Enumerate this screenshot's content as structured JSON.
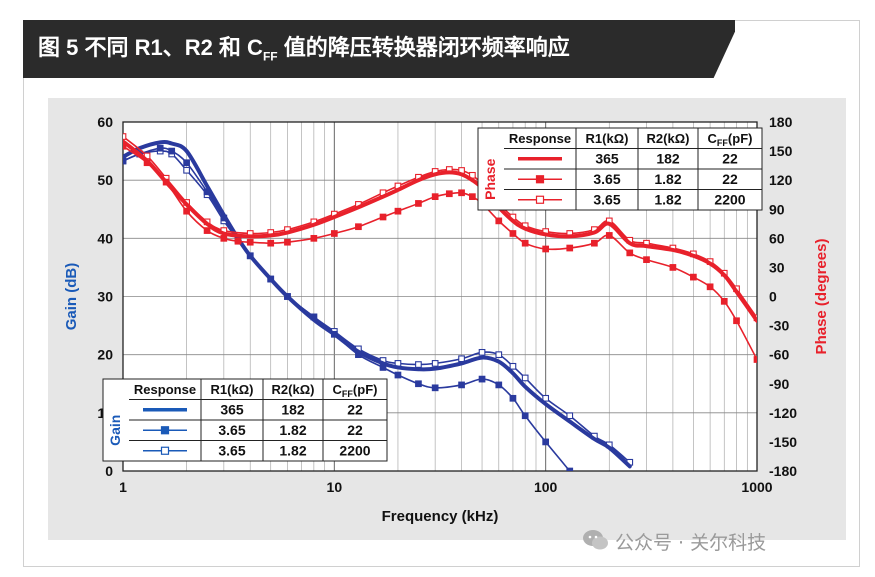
{
  "title": "图 5 不同 R1、R2 和 C",
  "title_sub": "FF",
  "title_tail": " 值的降压转换器闭环频率响应",
  "watermark": "公众号 · 关尔科技",
  "colors": {
    "gain": "#2a3a9e",
    "phase": "#e8212b",
    "grid": "#999999"
  },
  "chart_data": {
    "type": "line",
    "xlabel": "Frequency (kHz)",
    "ylabel_left": "Gain (dB)",
    "ylabel_right": "Phase (degrees)",
    "x_scale": "log",
    "xlim": [
      1,
      1000
    ],
    "ylim_left": [
      0,
      60
    ],
    "ylim_right": [
      -180,
      180
    ],
    "grid": true,
    "x_ticks": [
      {
        "v": 1,
        "label": "1"
      },
      {
        "v": 10,
        "label": "10"
      },
      {
        "v": 100,
        "label": "100"
      },
      {
        "v": 1000,
        "label": "1000"
      }
    ],
    "y_ticks_left": [
      {
        "v": 0,
        "label": "0"
      },
      {
        "v": 10,
        "label": "10"
      },
      {
        "v": 20,
        "label": "20"
      },
      {
        "v": 30,
        "label": "30"
      },
      {
        "v": 40,
        "label": "40"
      },
      {
        "v": 50,
        "label": "50"
      },
      {
        "v": 60,
        "label": "60"
      }
    ],
    "y_ticks_right": [
      {
        "v": 180,
        "label": "180"
      },
      {
        "v": 150,
        "label": "150"
      },
      {
        "v": 120,
        "label": "120"
      },
      {
        "v": 90,
        "label": "90"
      },
      {
        "v": 60,
        "label": "60"
      },
      {
        "v": 30,
        "label": "30"
      },
      {
        "v": 0,
        "label": "0"
      },
      {
        "v": -30,
        "label": "-30"
      },
      {
        "v": -60,
        "label": "-60"
      },
      {
        "v": -90,
        "label": "-90"
      },
      {
        "v": -120,
        "label": "-120"
      },
      {
        "v": -150,
        "label": "-150"
      },
      {
        "v": -180,
        "label": "-180"
      }
    ],
    "series": [
      {
        "group": "gain",
        "style": "solid",
        "axis": "left",
        "points": [
          [
            1,
            54
          ],
          [
            1.2,
            55.5
          ],
          [
            1.5,
            56.5
          ],
          [
            1.7,
            56.3
          ],
          [
            2,
            55
          ],
          [
            2.5,
            49
          ],
          [
            3,
            44
          ],
          [
            3.5,
            40
          ],
          [
            4,
            37
          ],
          [
            5,
            33
          ],
          [
            6,
            30
          ],
          [
            8,
            26
          ],
          [
            10,
            23.5
          ],
          [
            13,
            20.5
          ],
          [
            17,
            18.5
          ],
          [
            20,
            17.8
          ],
          [
            25,
            17.5
          ],
          [
            30,
            17.6
          ],
          [
            40,
            18.5
          ],
          [
            50,
            19.5
          ],
          [
            60,
            18.8
          ],
          [
            70,
            16.8
          ],
          [
            80,
            14.5
          ],
          [
            100,
            11.5
          ],
          [
            130,
            8.5
          ],
          [
            170,
            5.5
          ],
          [
            200,
            4
          ],
          [
            250,
            0.8
          ]
        ]
      },
      {
        "group": "gain",
        "style": "filled",
        "axis": "left",
        "points": [
          [
            1,
            53.3
          ],
          [
            1.2,
            54.5
          ],
          [
            1.5,
            55.5
          ],
          [
            1.7,
            55
          ],
          [
            2,
            53
          ],
          [
            2.5,
            48
          ],
          [
            3,
            43.5
          ],
          [
            3.5,
            40
          ],
          [
            4,
            37
          ],
          [
            5,
            33
          ],
          [
            6,
            30
          ],
          [
            8,
            26.5
          ],
          [
            10,
            23.5
          ],
          [
            13,
            20
          ],
          [
            17,
            17.8
          ],
          [
            20,
            16.5
          ],
          [
            25,
            15
          ],
          [
            30,
            14.3
          ],
          [
            40,
            14.8
          ],
          [
            50,
            15.8
          ],
          [
            60,
            14.8
          ],
          [
            70,
            12.5
          ],
          [
            80,
            9.5
          ],
          [
            100,
            5
          ],
          [
            130,
            0
          ]
        ]
      },
      {
        "group": "gain",
        "style": "open",
        "axis": "left",
        "points": [
          [
            1,
            53.3
          ],
          [
            1.2,
            54.5
          ],
          [
            1.5,
            55
          ],
          [
            1.7,
            54.5
          ],
          [
            2,
            51.7
          ],
          [
            2.5,
            47.5
          ],
          [
            3,
            43
          ],
          [
            3.5,
            39.7
          ],
          [
            4,
            37
          ],
          [
            5,
            33
          ],
          [
            6,
            30
          ],
          [
            8,
            26.5
          ],
          [
            10,
            24
          ],
          [
            13,
            21
          ],
          [
            17,
            19
          ],
          [
            20,
            18.5
          ],
          [
            25,
            18.3
          ],
          [
            30,
            18.5
          ],
          [
            40,
            19.3
          ],
          [
            50,
            20.4
          ],
          [
            60,
            20
          ],
          [
            70,
            18
          ],
          [
            80,
            16
          ],
          [
            100,
            12.5
          ],
          [
            130,
            9.5
          ],
          [
            170,
            6
          ],
          [
            200,
            4.5
          ],
          [
            250,
            1.5
          ]
        ]
      },
      {
        "group": "phase",
        "style": "solid",
        "axis": "right",
        "points": [
          [
            1,
            160
          ],
          [
            1.3,
            140
          ],
          [
            1.6,
            118
          ],
          [
            2,
            95
          ],
          [
            2.5,
            75
          ],
          [
            3,
            65
          ],
          [
            4,
            62
          ],
          [
            5,
            63
          ],
          [
            6,
            66
          ],
          [
            8,
            74
          ],
          [
            10,
            82
          ],
          [
            13,
            92
          ],
          [
            17,
            103
          ],
          [
            20,
            110
          ],
          [
            25,
            120
          ],
          [
            30,
            126
          ],
          [
            35,
            128
          ],
          [
            40,
            126
          ],
          [
            45,
            120
          ],
          [
            50,
            112
          ],
          [
            60,
            92
          ],
          [
            70,
            78
          ],
          [
            80,
            70
          ],
          [
            100,
            64
          ],
          [
            130,
            62
          ],
          [
            170,
            66
          ],
          [
            200,
            75
          ],
          [
            250,
            55
          ],
          [
            300,
            52
          ],
          [
            400,
            48
          ],
          [
            500,
            42
          ],
          [
            600,
            34
          ],
          [
            700,
            22
          ],
          [
            800,
            5
          ],
          [
            1000,
            -25
          ]
        ]
      },
      {
        "group": "phase",
        "style": "filled",
        "axis": "right",
        "points": [
          [
            1,
            155
          ],
          [
            1.3,
            138
          ],
          [
            1.6,
            118
          ],
          [
            2,
            88
          ],
          [
            2.5,
            68
          ],
          [
            3,
            60
          ],
          [
            3.5,
            57
          ],
          [
            4,
            56
          ],
          [
            5,
            55
          ],
          [
            6,
            56
          ],
          [
            8,
            60
          ],
          [
            10,
            65
          ],
          [
            13,
            72
          ],
          [
            17,
            82
          ],
          [
            20,
            88
          ],
          [
            25,
            96
          ],
          [
            30,
            103
          ],
          [
            35,
            106
          ],
          [
            40,
            107
          ],
          [
            45,
            103
          ],
          [
            50,
            96
          ],
          [
            60,
            78
          ],
          [
            70,
            65
          ],
          [
            80,
            55
          ],
          [
            100,
            49
          ],
          [
            130,
            50
          ],
          [
            170,
            55
          ],
          [
            200,
            63
          ],
          [
            250,
            45
          ],
          [
            300,
            38
          ],
          [
            400,
            30
          ],
          [
            500,
            20
          ],
          [
            600,
            10
          ],
          [
            700,
            -5
          ],
          [
            800,
            -25
          ],
          [
            1000,
            -65
          ]
        ]
      },
      {
        "group": "phase",
        "style": "open",
        "axis": "right",
        "points": [
          [
            1,
            165
          ],
          [
            1.3,
            145
          ],
          [
            1.6,
            122
          ],
          [
            2,
            97
          ],
          [
            2.5,
            77
          ],
          [
            3,
            68
          ],
          [
            4,
            65
          ],
          [
            5,
            66
          ],
          [
            6,
            69
          ],
          [
            8,
            77
          ],
          [
            10,
            85
          ],
          [
            13,
            95
          ],
          [
            17,
            107
          ],
          [
            20,
            114
          ],
          [
            25,
            123
          ],
          [
            30,
            129
          ],
          [
            35,
            131
          ],
          [
            40,
            130
          ],
          [
            45,
            125
          ],
          [
            50,
            116
          ],
          [
            60,
            96
          ],
          [
            70,
            82
          ],
          [
            80,
            73
          ],
          [
            100,
            67
          ],
          [
            130,
            65
          ],
          [
            170,
            69
          ],
          [
            200,
            78
          ],
          [
            250,
            58
          ],
          [
            300,
            55
          ],
          [
            400,
            50
          ],
          [
            500,
            44
          ],
          [
            600,
            36
          ],
          [
            700,
            24
          ],
          [
            800,
            8
          ],
          [
            1000,
            -22
          ]
        ]
      }
    ],
    "legend_phase": {
      "title": "Phase",
      "headers": [
        "Response",
        "R1(kΩ)",
        "R2(kΩ)",
        "C_FF(pF)"
      ],
      "header_parts": [
        {
          "main": "C",
          "sub": "FF",
          "tail": "(pF)"
        }
      ],
      "rows": [
        [
          "365",
          "182",
          "22"
        ],
        [
          "3.65",
          "1.82",
          "22"
        ],
        [
          "3.65",
          "1.82",
          "2200"
        ]
      ]
    },
    "legend_gain": {
      "title": "Gain",
      "headers": [
        "Response",
        "R1(kΩ)",
        "R2(kΩ)",
        "C_FF(pF)"
      ],
      "rows": [
        [
          "365",
          "182",
          "22"
        ],
        [
          "3.65",
          "1.82",
          "22"
        ],
        [
          "3.65",
          "1.82",
          "2200"
        ]
      ]
    }
  }
}
